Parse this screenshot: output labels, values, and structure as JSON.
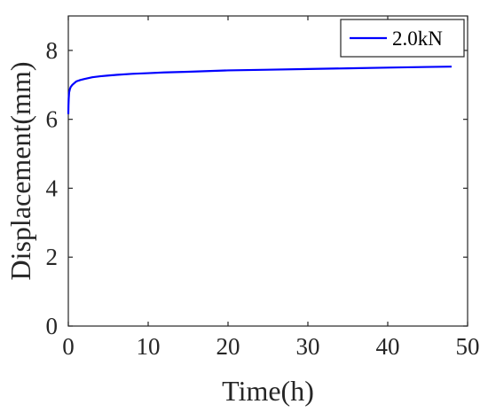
{
  "chart_data": {
    "type": "line",
    "title": "",
    "xlabel": "Time(h)",
    "ylabel": "Displacement(mm)",
    "xlim": [
      0,
      50
    ],
    "ylim": [
      0,
      9
    ],
    "xticks": [
      0,
      10,
      20,
      30,
      40,
      50
    ],
    "yticks": [
      0,
      2,
      4,
      6,
      8
    ],
    "xtick_labels": [
      "0",
      "10",
      "20",
      "30",
      "40",
      "50"
    ],
    "ytick_labels": [
      "0",
      "2",
      "4",
      "6",
      "8"
    ],
    "grid": false,
    "legend_position": "top-right",
    "series": [
      {
        "name": "2.0kN",
        "color": "#0000ff",
        "x": [
          0,
          0.02,
          0.05,
          0.1,
          0.2,
          0.3,
          0.5,
          0.75,
          1,
          1.5,
          2,
          3,
          4,
          5,
          6,
          8,
          10,
          12,
          15,
          20,
          25,
          30,
          35,
          40,
          45,
          48
        ],
        "y": [
          6.15,
          6.4,
          6.6,
          6.78,
          6.88,
          6.94,
          7.0,
          7.05,
          7.1,
          7.14,
          7.17,
          7.22,
          7.25,
          7.27,
          7.29,
          7.32,
          7.34,
          7.36,
          7.38,
          7.42,
          7.44,
          7.46,
          7.48,
          7.5,
          7.52,
          7.53
        ]
      }
    ]
  }
}
